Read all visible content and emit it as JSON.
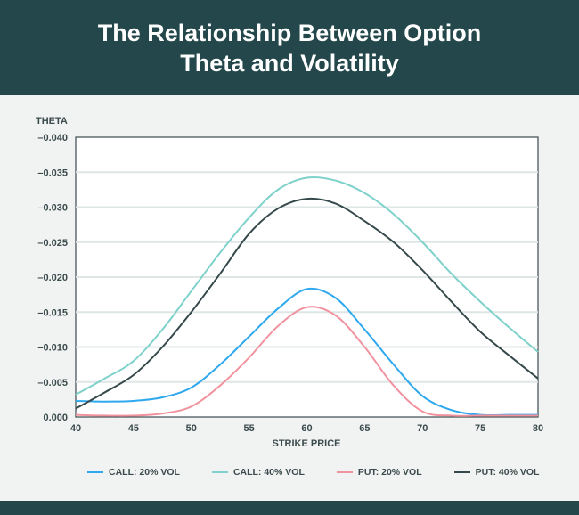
{
  "title": "The Relationship Between Option Theta and Volatility",
  "colors": {
    "header": "#23474a",
    "background": "#f1f3f2"
  },
  "chart_data": {
    "type": "line",
    "title": "The Relationship Between Option Theta and Volatility",
    "xlabel": "STRIKE PRICE",
    "ylabel": "THETA",
    "xlim": [
      40,
      80
    ],
    "ylim": [
      0,
      -0.04
    ],
    "grid": "horizontal",
    "legend": "bottom",
    "x_ticks": [
      "40",
      "45",
      "50",
      "55",
      "60",
      "65",
      "70",
      "75",
      "80"
    ],
    "y_ticks": [
      "0.000",
      "–0.005",
      "–0.010",
      "–0.015",
      "–0.020",
      "–0.025",
      "–0.030",
      "–0.035",
      "–0.040"
    ],
    "x": [
      40,
      42.5,
      45,
      47.5,
      50,
      52.5,
      55,
      57.5,
      60,
      62.5,
      65,
      67.5,
      70,
      72.5,
      75,
      77.5,
      80
    ],
    "series": [
      {
        "name": "CALL: 20% VOL",
        "color": "#2ea8ee",
        "values": [
          -0.0023,
          -0.0022,
          -0.0023,
          -0.0028,
          -0.0042,
          -0.0075,
          -0.0115,
          -0.0155,
          -0.0183,
          -0.017,
          -0.0125,
          -0.0075,
          -0.003,
          -0.001,
          -0.0003,
          -0.0003,
          -0.0003
        ]
      },
      {
        "name": "CALL: 40% VOL",
        "color": "#7fd1cb",
        "values": [
          -0.0032,
          -0.0055,
          -0.008,
          -0.0125,
          -0.018,
          -0.0235,
          -0.0285,
          -0.0325,
          -0.0342,
          -0.0338,
          -0.032,
          -0.029,
          -0.025,
          -0.0205,
          -0.0165,
          -0.0128,
          -0.0093
        ]
      },
      {
        "name": "PUT: 20% VOL",
        "color": "#f1939f",
        "values": [
          -0.0003,
          -0.0002,
          -0.0002,
          -0.0005,
          -0.0015,
          -0.0045,
          -0.0085,
          -0.013,
          -0.0157,
          -0.0145,
          -0.01,
          -0.0045,
          -0.0008,
          -0.0002,
          -0.0002,
          -0.0002,
          -0.0002
        ]
      },
      {
        "name": "PUT: 40% VOL",
        "color": "#35494b",
        "values": [
          -0.0012,
          -0.0035,
          -0.006,
          -0.01,
          -0.015,
          -0.0205,
          -0.0262,
          -0.0298,
          -0.0312,
          -0.0305,
          -0.028,
          -0.025,
          -0.021,
          -0.0165,
          -0.0122,
          -0.0088,
          -0.0055
        ]
      }
    ]
  }
}
